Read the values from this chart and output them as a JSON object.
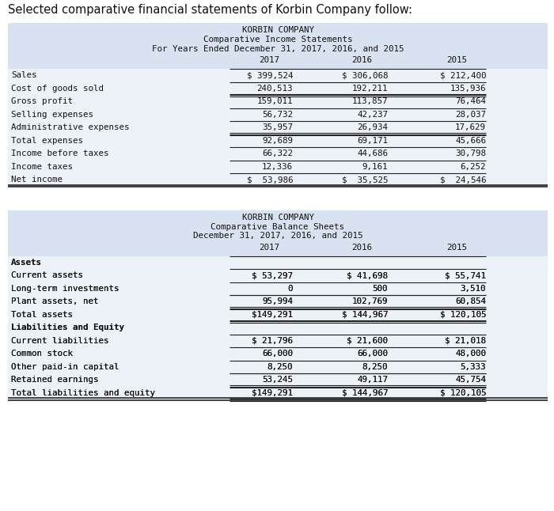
{
  "page_title": "Selected comparative financial statements of Korbin Company follow:",
  "bg_color": "#ffffff",
  "table_header_bg": "#d9e2f0",
  "table_body_bg": "#edf2f9",
  "income_title1": "KORBIN COMPANY",
  "income_title2": "Comparative Income Statements",
  "income_title3": "For Years Ended December 31, 2017, 2016, and 2015",
  "income_col_headers": [
    "2017",
    "2016",
    "2015"
  ],
  "income_rows": [
    [
      "Sales",
      "$ 399,524",
      "$ 306,068",
      "$ 212,400",
      "normal",
      false,
      false
    ],
    [
      "Cost of goods sold",
      "240,513",
      "192,211",
      "135,936",
      "normal",
      true,
      false
    ],
    [
      "Gross profit",
      "159,011",
      "113,857",
      "76,464",
      "normal",
      false,
      false
    ],
    [
      "Selling expenses",
      "56,732",
      "42,237",
      "28,037",
      "normal",
      false,
      false
    ],
    [
      "Administrative expenses",
      "35,957",
      "26,934",
      "17,629",
      "normal",
      true,
      false
    ],
    [
      "Total expenses",
      "92,689",
      "69,171",
      "45,666",
      "normal",
      false,
      false
    ],
    [
      "Income before taxes",
      "66,322",
      "44,686",
      "30,798",
      "normal",
      false,
      false
    ],
    [
      "Income taxes",
      "12,336",
      "9,161",
      "6,252",
      "normal",
      false,
      false
    ],
    [
      "Net income",
      "$  53,986",
      "$  35,525",
      "$  24,546",
      "normal",
      false,
      true
    ]
  ],
  "balance_title1": "KORBIN COMPANY",
  "balance_title2": "Comparative Balance Sheets",
  "balance_title3": "December 31, 2017, 2016, and 2015",
  "balance_col_headers": [
    "2017",
    "2016",
    "2015"
  ],
  "balance_rows": [
    [
      "Assets",
      "",
      "",
      "",
      "bold",
      false,
      false
    ],
    [
      "Current assets",
      "$ 53,297",
      "$ 41,698",
      "$ 55,741",
      "normal",
      false,
      false
    ],
    [
      "Long-term investments",
      "0",
      "500",
      "3,510",
      "normal",
      false,
      false
    ],
    [
      "Plant assets, net",
      "95,994",
      "102,769",
      "60,854",
      "normal",
      true,
      false
    ],
    [
      "Total assets",
      "$149,291",
      "$ 144,967",
      "$ 120,105",
      "normal",
      false,
      true
    ],
    [
      "Liabilities and Equity",
      "",
      "",
      "",
      "bold",
      false,
      false
    ],
    [
      "Current liabilities",
      "$ 21,796",
      "$ 21,600",
      "$ 21,018",
      "normal",
      false,
      false
    ],
    [
      "Common stock",
      "66,000",
      "66,000",
      "48,000",
      "normal",
      false,
      false
    ],
    [
      "Other paid-in capital",
      "8,250",
      "8,250",
      "5,333",
      "normal",
      false,
      false
    ],
    [
      "Retained earnings",
      "53,245",
      "49,117",
      "45,754",
      "normal",
      true,
      false
    ],
    [
      "Total liabilities and equity",
      "$149,291",
      "$ 144,967",
      "$ 120,105",
      "normal",
      false,
      true
    ]
  ]
}
